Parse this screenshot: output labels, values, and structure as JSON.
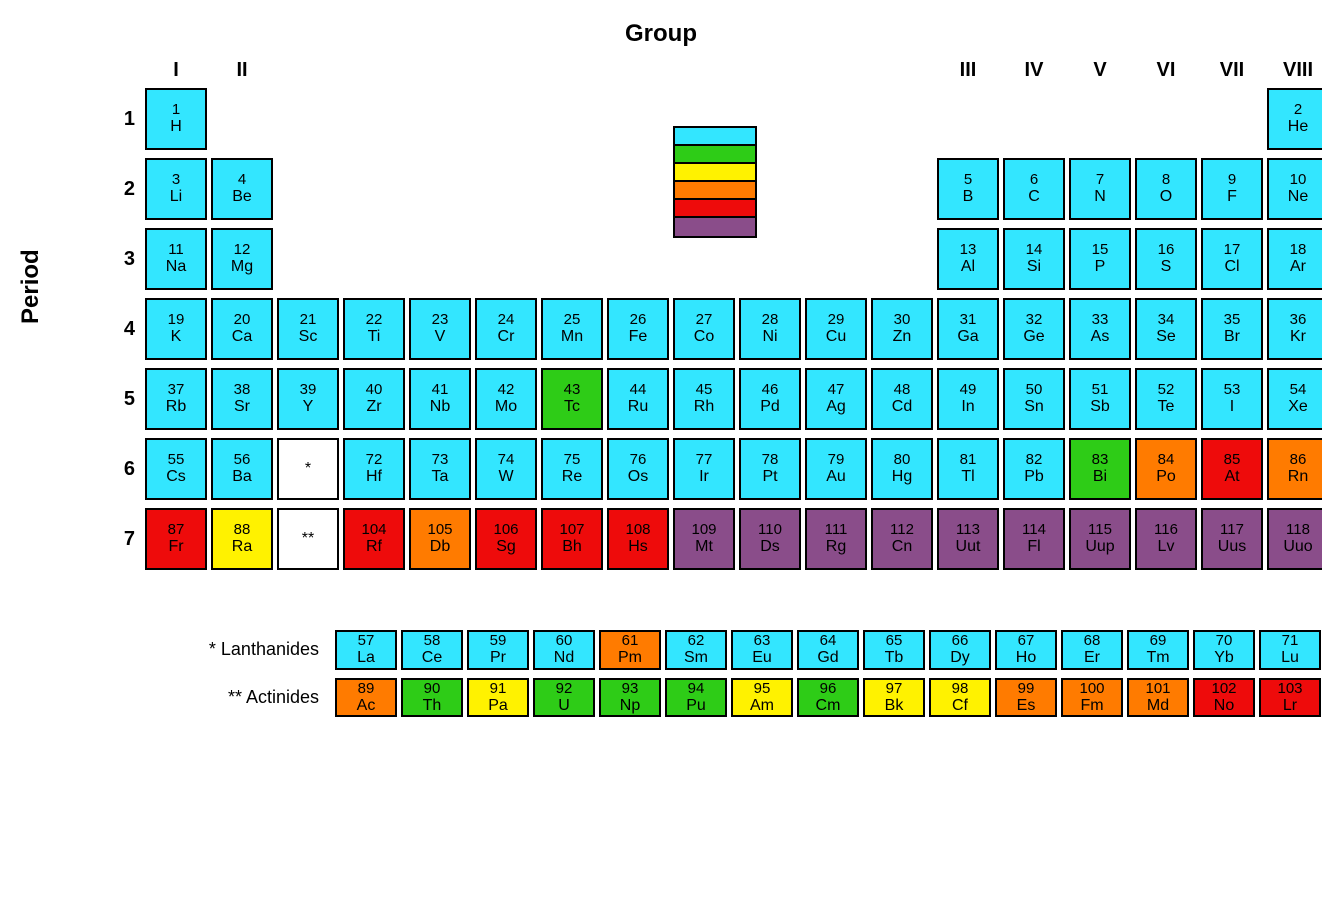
{
  "titles": {
    "group": "Group",
    "period": "Period"
  },
  "groupHeaders": [
    "I",
    "II",
    "",
    "",
    "",
    "",
    "",
    "",
    "",
    "",
    "",
    "",
    "III",
    "IV",
    "V",
    "VI",
    "VII",
    "VIII"
  ],
  "periodLabels": [
    "1",
    "2",
    "3",
    "4",
    "5",
    "6",
    "7"
  ],
  "colors": {
    "cyan": "#33e6ff",
    "green": "#2ecc17",
    "yellow": "#fff200",
    "orange": "#ff7b00",
    "red": "#ee0b0b",
    "purple": "#8a4d8a",
    "white": "#ffffff"
  },
  "legendOrder": [
    "cyan",
    "green",
    "yellow",
    "orange",
    "red",
    "purple"
  ],
  "mainGrid": [
    [
      {
        "n": "1",
        "s": "H",
        "c": "cyan"
      },
      null,
      null,
      null,
      null,
      null,
      null,
      null,
      null,
      null,
      null,
      null,
      null,
      null,
      null,
      null,
      null,
      {
        "n": "2",
        "s": "He",
        "c": "cyan"
      }
    ],
    [
      {
        "n": "3",
        "s": "Li",
        "c": "cyan"
      },
      {
        "n": "4",
        "s": "Be",
        "c": "cyan"
      },
      null,
      null,
      null,
      null,
      null,
      null,
      null,
      null,
      null,
      null,
      {
        "n": "5",
        "s": "B",
        "c": "cyan"
      },
      {
        "n": "6",
        "s": "C",
        "c": "cyan"
      },
      {
        "n": "7",
        "s": "N",
        "c": "cyan"
      },
      {
        "n": "8",
        "s": "O",
        "c": "cyan"
      },
      {
        "n": "9",
        "s": "F",
        "c": "cyan"
      },
      {
        "n": "10",
        "s": "Ne",
        "c": "cyan"
      }
    ],
    [
      {
        "n": "11",
        "s": "Na",
        "c": "cyan"
      },
      {
        "n": "12",
        "s": "Mg",
        "c": "cyan"
      },
      null,
      null,
      null,
      null,
      null,
      null,
      null,
      null,
      null,
      null,
      {
        "n": "13",
        "s": "Al",
        "c": "cyan"
      },
      {
        "n": "14",
        "s": "Si",
        "c": "cyan"
      },
      {
        "n": "15",
        "s": "P",
        "c": "cyan"
      },
      {
        "n": "16",
        "s": "S",
        "c": "cyan"
      },
      {
        "n": "17",
        "s": "Cl",
        "c": "cyan"
      },
      {
        "n": "18",
        "s": "Ar",
        "c": "cyan"
      }
    ],
    [
      {
        "n": "19",
        "s": "K",
        "c": "cyan"
      },
      {
        "n": "20",
        "s": "Ca",
        "c": "cyan"
      },
      {
        "n": "21",
        "s": "Sc",
        "c": "cyan"
      },
      {
        "n": "22",
        "s": "Ti",
        "c": "cyan"
      },
      {
        "n": "23",
        "s": "V",
        "c": "cyan"
      },
      {
        "n": "24",
        "s": "Cr",
        "c": "cyan"
      },
      {
        "n": "25",
        "s": "Mn",
        "c": "cyan"
      },
      {
        "n": "26",
        "s": "Fe",
        "c": "cyan"
      },
      {
        "n": "27",
        "s": "Co",
        "c": "cyan"
      },
      {
        "n": "28",
        "s": "Ni",
        "c": "cyan"
      },
      {
        "n": "29",
        "s": "Cu",
        "c": "cyan"
      },
      {
        "n": "30",
        "s": "Zn",
        "c": "cyan"
      },
      {
        "n": "31",
        "s": "Ga",
        "c": "cyan"
      },
      {
        "n": "32",
        "s": "Ge",
        "c": "cyan"
      },
      {
        "n": "33",
        "s": "As",
        "c": "cyan"
      },
      {
        "n": "34",
        "s": "Se",
        "c": "cyan"
      },
      {
        "n": "35",
        "s": "Br",
        "c": "cyan"
      },
      {
        "n": "36",
        "s": "Kr",
        "c": "cyan"
      }
    ],
    [
      {
        "n": "37",
        "s": "Rb",
        "c": "cyan"
      },
      {
        "n": "38",
        "s": "Sr",
        "c": "cyan"
      },
      {
        "n": "39",
        "s": "Y",
        "c": "cyan"
      },
      {
        "n": "40",
        "s": "Zr",
        "c": "cyan"
      },
      {
        "n": "41",
        "s": "Nb",
        "c": "cyan"
      },
      {
        "n": "42",
        "s": "Mo",
        "c": "cyan"
      },
      {
        "n": "43",
        "s": "Tc",
        "c": "green"
      },
      {
        "n": "44",
        "s": "Ru",
        "c": "cyan"
      },
      {
        "n": "45",
        "s": "Rh",
        "c": "cyan"
      },
      {
        "n": "46",
        "s": "Pd",
        "c": "cyan"
      },
      {
        "n": "47",
        "s": "Ag",
        "c": "cyan"
      },
      {
        "n": "48",
        "s": "Cd",
        "c": "cyan"
      },
      {
        "n": "49",
        "s": "In",
        "c": "cyan"
      },
      {
        "n": "50",
        "s": "Sn",
        "c": "cyan"
      },
      {
        "n": "51",
        "s": "Sb",
        "c": "cyan"
      },
      {
        "n": "52",
        "s": "Te",
        "c": "cyan"
      },
      {
        "n": "53",
        "s": "I",
        "c": "cyan"
      },
      {
        "n": "54",
        "s": "Xe",
        "c": "cyan"
      }
    ],
    [
      {
        "n": "55",
        "s": "Cs",
        "c": "cyan"
      },
      {
        "n": "56",
        "s": "Ba",
        "c": "cyan"
      },
      {
        "placeholder": "*"
      },
      {
        "n": "72",
        "s": "Hf",
        "c": "cyan"
      },
      {
        "n": "73",
        "s": "Ta",
        "c": "cyan"
      },
      {
        "n": "74",
        "s": "W",
        "c": "cyan"
      },
      {
        "n": "75",
        "s": "Re",
        "c": "cyan"
      },
      {
        "n": "76",
        "s": "Os",
        "c": "cyan"
      },
      {
        "n": "77",
        "s": "Ir",
        "c": "cyan"
      },
      {
        "n": "78",
        "s": "Pt",
        "c": "cyan"
      },
      {
        "n": "79",
        "s": "Au",
        "c": "cyan"
      },
      {
        "n": "80",
        "s": "Hg",
        "c": "cyan"
      },
      {
        "n": "81",
        "s": "Tl",
        "c": "cyan"
      },
      {
        "n": "82",
        "s": "Pb",
        "c": "cyan"
      },
      {
        "n": "83",
        "s": "Bi",
        "c": "green"
      },
      {
        "n": "84",
        "s": "Po",
        "c": "orange"
      },
      {
        "n": "85",
        "s": "At",
        "c": "red"
      },
      {
        "n": "86",
        "s": "Rn",
        "c": "orange"
      }
    ],
    [
      {
        "n": "87",
        "s": "Fr",
        "c": "red"
      },
      {
        "n": "88",
        "s": "Ra",
        "c": "yellow"
      },
      {
        "placeholder": "**"
      },
      {
        "n": "104",
        "s": "Rf",
        "c": "red"
      },
      {
        "n": "105",
        "s": "Db",
        "c": "orange"
      },
      {
        "n": "106",
        "s": "Sg",
        "c": "red"
      },
      {
        "n": "107",
        "s": "Bh",
        "c": "red"
      },
      {
        "n": "108",
        "s": "Hs",
        "c": "red"
      },
      {
        "n": "109",
        "s": "Mt",
        "c": "purple"
      },
      {
        "n": "110",
        "s": "Ds",
        "c": "purple"
      },
      {
        "n": "111",
        "s": "Rg",
        "c": "purple"
      },
      {
        "n": "112",
        "s": "Cn",
        "c": "purple"
      },
      {
        "n": "113",
        "s": "Uut",
        "c": "purple"
      },
      {
        "n": "114",
        "s": "Fl",
        "c": "purple"
      },
      {
        "n": "115",
        "s": "Uup",
        "c": "purple"
      },
      {
        "n": "116",
        "s": "Lv",
        "c": "purple"
      },
      {
        "n": "117",
        "s": "Uus",
        "c": "purple"
      },
      {
        "n": "118",
        "s": "Uuo",
        "c": "purple"
      }
    ]
  ],
  "bottomRows": [
    {
      "label": "* Lanthanides",
      "cells": [
        {
          "n": "57",
          "s": "La",
          "c": "cyan"
        },
        {
          "n": "58",
          "s": "Ce",
          "c": "cyan"
        },
        {
          "n": "59",
          "s": "Pr",
          "c": "cyan"
        },
        {
          "n": "60",
          "s": "Nd",
          "c": "cyan"
        },
        {
          "n": "61",
          "s": "Pm",
          "c": "orange"
        },
        {
          "n": "62",
          "s": "Sm",
          "c": "cyan"
        },
        {
          "n": "63",
          "s": "Eu",
          "c": "cyan"
        },
        {
          "n": "64",
          "s": "Gd",
          "c": "cyan"
        },
        {
          "n": "65",
          "s": "Tb",
          "c": "cyan"
        },
        {
          "n": "66",
          "s": "Dy",
          "c": "cyan"
        },
        {
          "n": "67",
          "s": "Ho",
          "c": "cyan"
        },
        {
          "n": "68",
          "s": "Er",
          "c": "cyan"
        },
        {
          "n": "69",
          "s": "Tm",
          "c": "cyan"
        },
        {
          "n": "70",
          "s": "Yb",
          "c": "cyan"
        },
        {
          "n": "71",
          "s": "Lu",
          "c": "cyan"
        }
      ]
    },
    {
      "label": "** Actinides",
      "cells": [
        {
          "n": "89",
          "s": "Ac",
          "c": "orange"
        },
        {
          "n": "90",
          "s": "Th",
          "c": "green"
        },
        {
          "n": "91",
          "s": "Pa",
          "c": "yellow"
        },
        {
          "n": "92",
          "s": "U",
          "c": "green"
        },
        {
          "n": "93",
          "s": "Np",
          "c": "green"
        },
        {
          "n": "94",
          "s": "Pu",
          "c": "green"
        },
        {
          "n": "95",
          "s": "Am",
          "c": "yellow"
        },
        {
          "n": "96",
          "s": "Cm",
          "c": "green"
        },
        {
          "n": "97",
          "s": "Bk",
          "c": "yellow"
        },
        {
          "n": "98",
          "s": "Cf",
          "c": "yellow"
        },
        {
          "n": "99",
          "s": "Es",
          "c": "orange"
        },
        {
          "n": "100",
          "s": "Fm",
          "c": "orange"
        },
        {
          "n": "101",
          "s": "Md",
          "c": "orange"
        },
        {
          "n": "102",
          "s": "No",
          "c": "red"
        },
        {
          "n": "103",
          "s": "Lr",
          "c": "red"
        }
      ]
    }
  ]
}
